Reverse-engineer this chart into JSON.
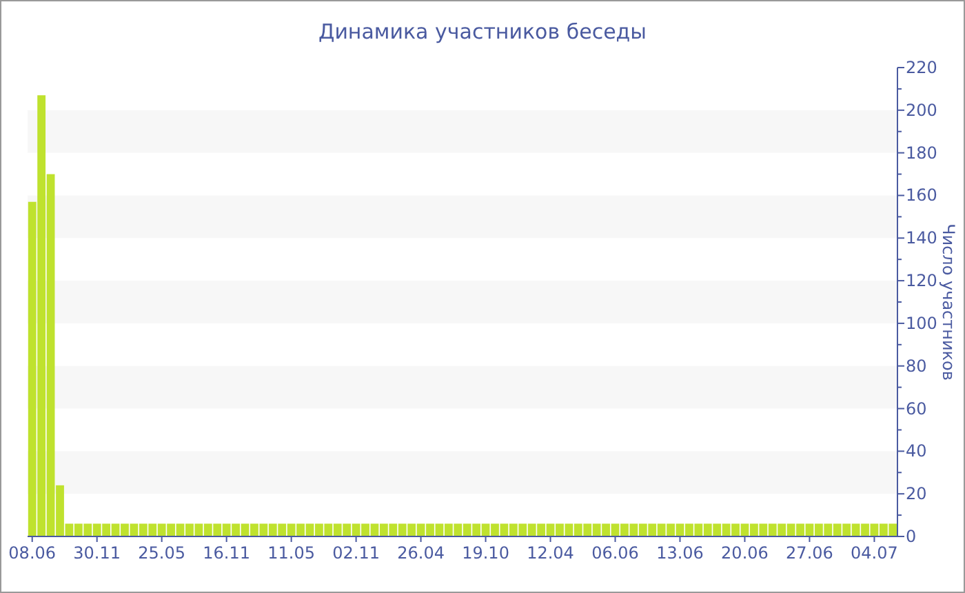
{
  "chart_data": {
    "type": "bar",
    "title": "Динамика участников беседы",
    "ylabel": "Число участников",
    "categories": [
      "08.06",
      null,
      null,
      null,
      null,
      null,
      null,
      "30.11",
      null,
      null,
      null,
      null,
      null,
      null,
      "25.05",
      null,
      null,
      null,
      null,
      null,
      null,
      "16.11",
      null,
      null,
      null,
      null,
      null,
      null,
      "11.05",
      null,
      null,
      null,
      null,
      null,
      null,
      "02.11",
      null,
      null,
      null,
      null,
      null,
      null,
      "26.04",
      null,
      null,
      null,
      null,
      null,
      null,
      "19.10",
      null,
      null,
      null,
      null,
      null,
      null,
      "12.04",
      null,
      null,
      null,
      null,
      null,
      null,
      "06.06",
      null,
      null,
      null,
      null,
      null,
      null,
      "13.06",
      null,
      null,
      null,
      null,
      null,
      null,
      "20.06",
      null,
      null,
      null,
      null,
      null,
      null,
      "27.06",
      null,
      null,
      null,
      null,
      null,
      null,
      "04.07",
      null,
      null
    ],
    "values": [
      157,
      207,
      170,
      24,
      6,
      6,
      6,
      6,
      6,
      6,
      6,
      6,
      6,
      6,
      6,
      6,
      6,
      6,
      6,
      6,
      6,
      6,
      6,
      6,
      6,
      6,
      6,
      6,
      6,
      6,
      6,
      6,
      6,
      6,
      6,
      6,
      6,
      6,
      6,
      6,
      6,
      6,
      6,
      6,
      6,
      6,
      6,
      6,
      6,
      6,
      6,
      6,
      6,
      6,
      6,
      6,
      6,
      6,
      6,
      6,
      6,
      6,
      6,
      6,
      6,
      6,
      6,
      6,
      6,
      6,
      6,
      6,
      6,
      6,
      6,
      6,
      6,
      6,
      6,
      6,
      6,
      6,
      6,
      6,
      6,
      6,
      6,
      6,
      6,
      6,
      6,
      6,
      6,
      6
    ],
    "color": "#bfe22e",
    "ylim": [
      0,
      220
    ],
    "yticks": [
      0,
      {
        "value": 10,
        "label": null
      },
      20,
      {
        "value": 30,
        "label": null
      },
      40,
      {
        "value": 50,
        "label": null
      },
      60,
      {
        "value": 70,
        "label": null
      },
      80,
      {
        "value": 90,
        "label": null
      },
      100,
      {
        "value": 110,
        "label": null
      },
      120,
      {
        "value": 130,
        "label": null
      },
      140,
      {
        "value": 150,
        "label": null
      },
      160,
      {
        "value": 170,
        "label": null
      },
      180,
      {
        "value": 190,
        "label": null
      },
      200,
      {
        "value": 210,
        "label": null
      },
      220
    ],
    "bands": [
      {
        "axis": "y",
        "from": 20,
        "to": 40,
        "color": "#f7f7f7"
      },
      {
        "axis": "y",
        "from": 60,
        "to": 80,
        "color": "#f7f7f7"
      },
      {
        "axis": "y",
        "from": 100,
        "to": 120,
        "color": "#f7f7f7"
      },
      {
        "axis": "y",
        "from": 140,
        "to": 160,
        "color": "#f7f7f7"
      },
      {
        "axis": "y",
        "from": 180,
        "to": 200,
        "color": "#f7f7f7"
      }
    ],
    "grid": false
  }
}
